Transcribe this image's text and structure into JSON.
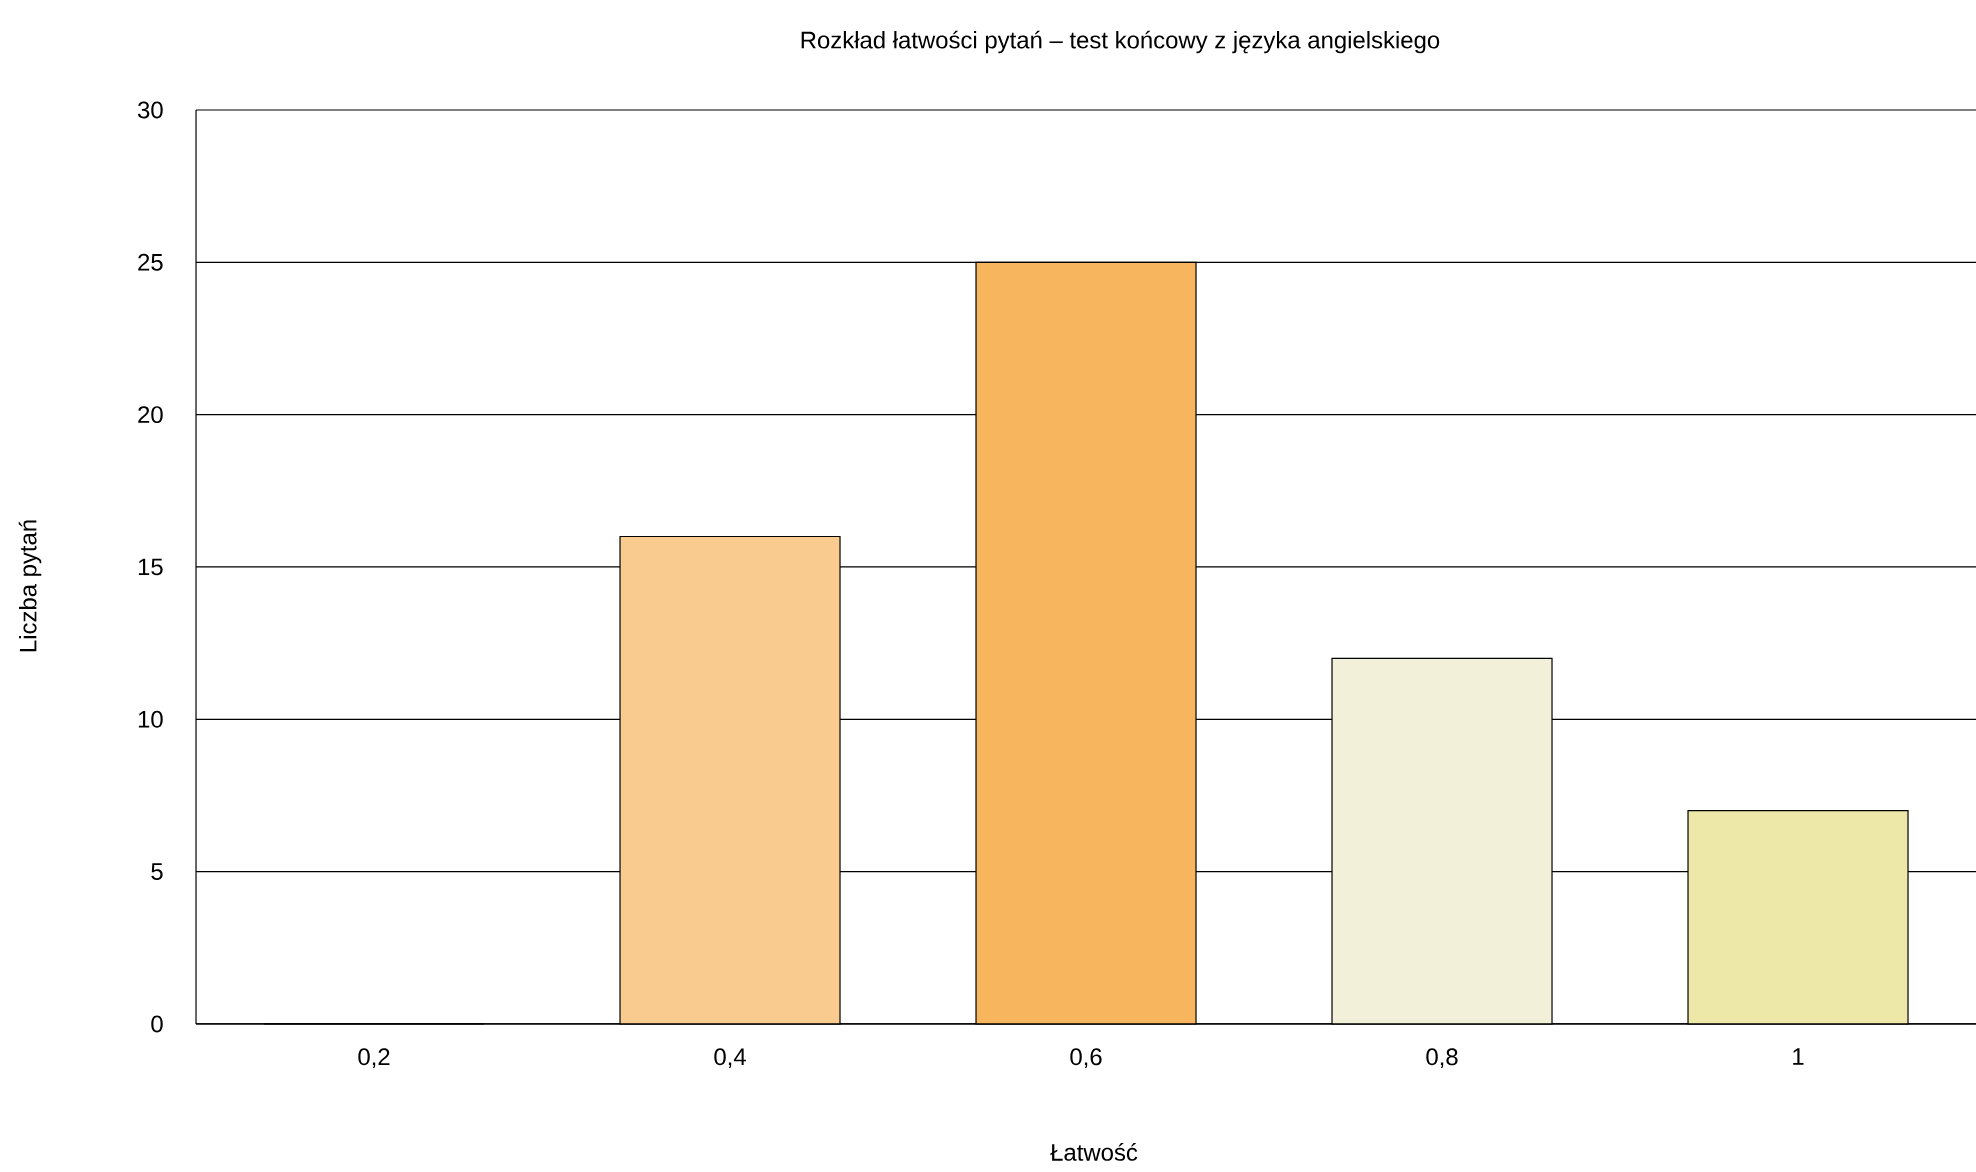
{
  "chart_data": {
    "type": "bar",
    "title": "Rozkład łatwości pytań – test końcowy z języka angielskiego",
    "xlabel": "Łatwość",
    "ylabel": "Liczba pytań",
    "categories": [
      "0,2",
      "0,4",
      "0,6",
      "0,8",
      "1"
    ],
    "values": [
      0,
      16,
      25,
      12,
      7
    ],
    "colors": [
      "#facb8e",
      "#facb8e",
      "#f7b55e",
      "#f2f0d8",
      "#ede8a8"
    ],
    "ylim": [
      0,
      30
    ],
    "yticks": [
      0,
      5,
      10,
      15,
      20,
      25,
      30
    ],
    "grid": "y"
  }
}
